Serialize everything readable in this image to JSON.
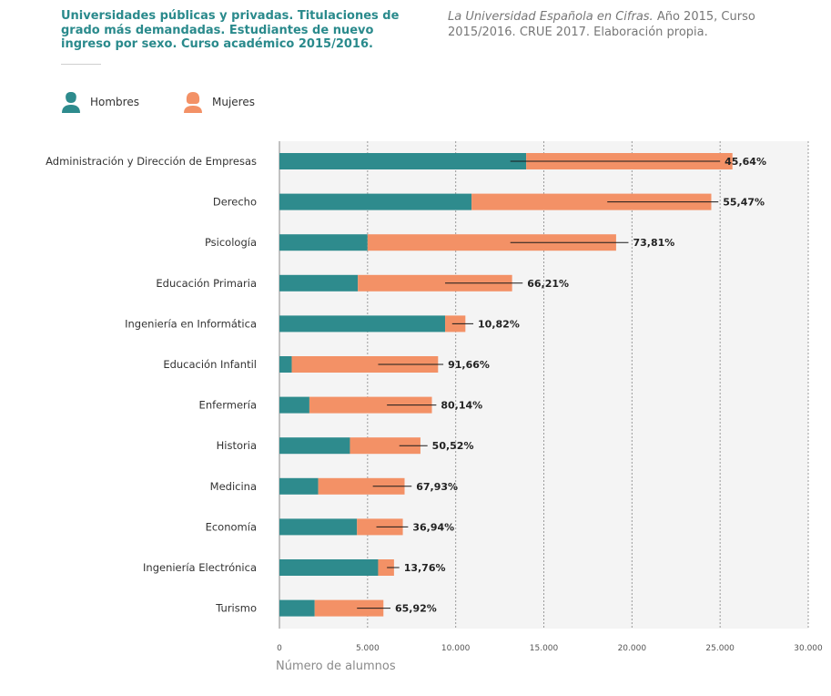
{
  "header": {
    "title": "Universidades públicas y privadas. Titulaciones de grado más demandadas. Estudiantes de nuevo ingreso por sexo. Curso académico 2015/2016.",
    "source_italic": "La Universidad Española en Cifras.",
    "source_rest": " Año 2015, Curso 2015/2016. CRUE 2017. Elaboración propia."
  },
  "legend": [
    {
      "label": "Hombres",
      "icon": "man-icon",
      "color": "#2e8b8d"
    },
    {
      "label": "Mujeres",
      "icon": "woman-icon",
      "color": "#f39166"
    }
  ],
  "colors": {
    "hombres": "#2e8b8d",
    "mujeres": "#f39166",
    "plot_bg": "#f4f4f4",
    "grid": "#9a9a9a"
  },
  "chart_data": {
    "type": "bar",
    "orientation": "horizontal",
    "stacked": true,
    "xlabel": "Número de alumnos",
    "xlim": [
      0,
      30000
    ],
    "xticks": [
      0,
      5000,
      10000,
      15000,
      20000,
      25000,
      30000
    ],
    "xtick_labels": [
      "0",
      "5.000",
      "10.000",
      "15.000",
      "20.000",
      "25.000",
      "30.000"
    ],
    "grid": "vertical dashed",
    "categories": [
      "Administración y Dirección de Empresas",
      "Derecho",
      "Psicología",
      "Educación Primaria",
      "Ingeniería en Informática",
      "Educación Infantil",
      "Enfermería",
      "Historia",
      "Medicina",
      "Economía",
      "Ingeniería Electrónica",
      "Turismo"
    ],
    "series": [
      {
        "name": "Hombres",
        "values": [
          14000,
          10900,
          5000,
          4450,
          9400,
          700,
          1700,
          4000,
          2200,
          4400,
          5600,
          2000
        ]
      },
      {
        "name": "Mujeres",
        "values": [
          11700,
          13600,
          14100,
          8750,
          1150,
          8300,
          6950,
          4000,
          4900,
          2600,
          900,
          3900
        ]
      }
    ],
    "pct_mujeres_labels": [
      "45,64%",
      "55,47%",
      "73,81%",
      "66,21%",
      "10,82%",
      "91,66%",
      "80,14%",
      "50,52%",
      "67,93%",
      "36,94%",
      "13,76%",
      "65,92%"
    ],
    "marker_lines": [
      [
        13100,
        25000
      ],
      [
        18600,
        24900
      ],
      [
        13100,
        19800
      ],
      [
        9400,
        13800
      ],
      [
        9800,
        11000
      ],
      [
        5600,
        9300
      ],
      [
        6100,
        8900
      ],
      [
        6800,
        8400
      ],
      [
        5300,
        7500
      ],
      [
        5500,
        7300
      ],
      [
        6100,
        6800
      ],
      [
        4400,
        6300
      ]
    ]
  }
}
